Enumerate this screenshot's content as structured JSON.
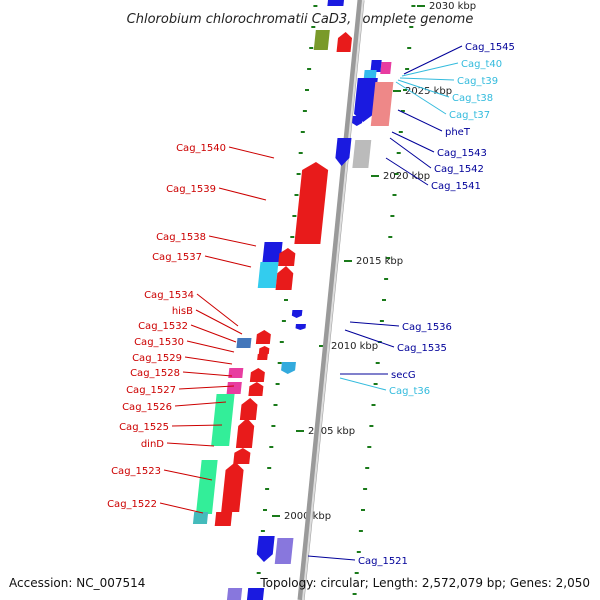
{
  "title": "Chlorobium chlorochromatii CaD3, complete genome",
  "footer": {
    "accession": "Accession: NC_007514",
    "topology": "Topology: circular; Length: 2,572,079 bp; Genes: 2,050"
  },
  "colors": {
    "backbone": "#9a9a9a",
    "left_label": "#cc0000",
    "right_gene_label": "#000099",
    "right_trna_label": "#33bbdd",
    "tick": "#1a7a1a",
    "gene_fwd": "#e81b1b",
    "gene_rev": "#1a1ae0"
  },
  "scale_labels": [
    "2030 kbp",
    "2025 kbp",
    "2020 kbp",
    "2015 kbp",
    "2010 kbp",
    "2005 kbp",
    "2000 kbp"
  ],
  "left_labels": [
    "Cag_1540",
    "Cag_1539",
    "Cag_1538",
    "Cag_1537",
    "Cag_1534",
    "hisB",
    "Cag_1532",
    "Cag_1530",
    "Cag_1529",
    "Cag_1528",
    "Cag_1527",
    "Cag_1526",
    "Cag_1525",
    "dinD",
    "Cag_1523",
    "Cag_1522"
  ],
  "right_labels": [
    "Cag_1545",
    "Cag_t40",
    "Cag_t39",
    "Cag_t38",
    "Cag_t37",
    "pheT",
    "Cag_1543",
    "Cag_1542",
    "Cag_1541",
    "Cag_1536",
    "Cag_1535",
    "secG",
    "Cag_t36",
    "Cag_1521"
  ]
}
